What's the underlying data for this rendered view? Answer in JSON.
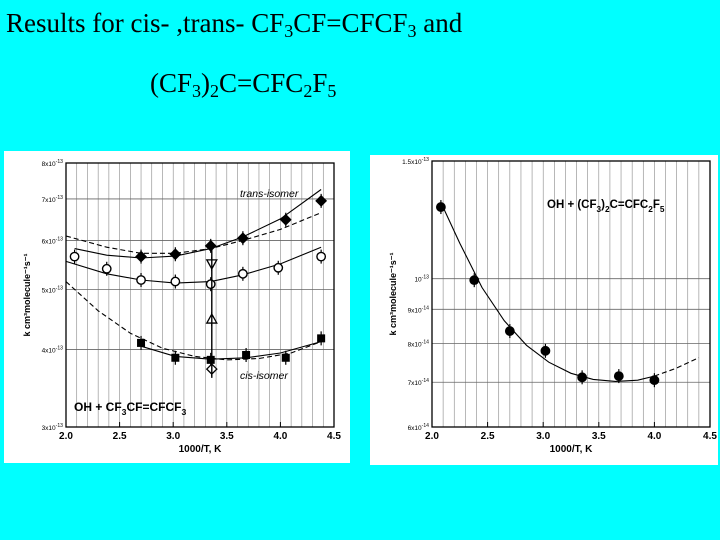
{
  "slide": {
    "title_line1": {
      "a": "Results for cis- ,trans- CF",
      "s1": "3",
      "b": "CF=CFCF",
      "s2": "3",
      "c": " and"
    },
    "title_line2": {
      "a": "(CF",
      "s1": "3",
      "b": ")",
      "s2": "2",
      "c": "C=CFC",
      "s3": "2",
      "d": "F",
      "s4": "5"
    }
  },
  "chart_data": [
    {
      "type": "scatter",
      "yscale": "log",
      "xlabel": "1000/T,  K",
      "ylabel": "k cm³molecule⁻¹s⁻¹",
      "xlim": [
        2.0,
        4.5
      ],
      "ylim": [
        3e-13,
        8e-13
      ],
      "xticks": [
        "2.0",
        "2.5",
        "3.0",
        "3.5",
        "4.0",
        "4.5"
      ],
      "yticks": [
        {
          "v": 3e-13,
          "m": "3x10",
          "e": "-13"
        },
        {
          "v": 4e-13,
          "m": "4x10",
          "e": "-13"
        },
        {
          "v": 5e-13,
          "m": "5x10",
          "e": "-13"
        },
        {
          "v": 6e-13,
          "m": "6x10",
          "e": "-13"
        },
        {
          "v": 7e-13,
          "m": "7x10",
          "e": "-13"
        },
        {
          "v": 8e-13,
          "m": "8x10",
          "e": "-13"
        }
      ],
      "annotations": {
        "trans": "trans-isomer",
        "cis": "cis-isomer",
        "reaction": {
          "a": "OH + CF",
          "s1": "3",
          "b": "CF=CFCF",
          "s2": "3"
        }
      },
      "series": [
        {
          "marker": "diamond-filled",
          "x": [
            2.7,
            3.02,
            3.35,
            3.65,
            4.05,
            4.38
          ],
          "y": [
            5.65e-13,
            5.7e-13,
            5.88e-13,
            6.05e-13,
            6.48e-13,
            6.95e-13
          ]
        },
        {
          "marker": "circle-open",
          "x": [
            2.08,
            2.38,
            2.7,
            3.02,
            3.35,
            3.65,
            3.98,
            4.38
          ],
          "y": [
            5.65e-13,
            5.4e-13,
            5.18e-13,
            5.15e-13,
            5.1e-13,
            5.3e-13,
            5.42e-13,
            5.65e-13
          ]
        },
        {
          "marker": "square-filled",
          "x": [
            2.7,
            3.02,
            3.35,
            3.68,
            4.05,
            4.38
          ],
          "y": [
            4.1e-13,
            3.88e-13,
            3.85e-13,
            3.92e-13,
            3.88e-13,
            4.17e-13
          ]
        },
        {
          "marker": "triangle-down-open",
          "x": [
            3.36
          ],
          "y": [
            5.5e-13
          ]
        },
        {
          "marker": "triangle-up-open",
          "x": [
            3.36
          ],
          "y": [
            4.48e-13
          ]
        },
        {
          "marker": "diamond-open",
          "x": [
            3.36
          ],
          "y": [
            3.72e-13
          ]
        }
      ],
      "fits": [
        {
          "x": [
            2.08,
            2.38,
            2.7,
            3.02,
            3.35,
            3.65,
            4.0,
            4.38
          ],
          "y": [
            5.82e-13,
            5.68e-13,
            5.62e-13,
            5.66e-13,
            5.82e-13,
            6.08e-13,
            6.5e-13,
            7.25e-13
          ],
          "style": "solid"
        },
        {
          "x": [
            2.0,
            2.38,
            2.7,
            3.02,
            3.35,
            3.65,
            4.0,
            4.38
          ],
          "y": [
            5.55e-13,
            5.3e-13,
            5.18e-13,
            5.12e-13,
            5.15e-13,
            5.28e-13,
            5.5e-13,
            5.85e-13
          ],
          "style": "solid"
        },
        {
          "x": [
            2.7,
            3.02,
            3.35,
            3.68,
            4.0,
            4.38
          ],
          "y": [
            4.05e-13,
            3.9e-13,
            3.86e-13,
            3.88e-13,
            3.95e-13,
            4.12e-13
          ],
          "style": "solid"
        },
        {
          "x": [
            2.0,
            2.38,
            2.7,
            3.02,
            3.35,
            3.65,
            4.0,
            4.38
          ],
          "y": [
            6.1e-13,
            5.85e-13,
            5.72e-13,
            5.72e-13,
            5.82e-13,
            6e-13,
            6.25e-13,
            6.65e-13
          ],
          "style": "dashed"
        },
        {
          "x": [
            2.0,
            2.3,
            2.6,
            2.9,
            3.2,
            3.5,
            3.8,
            4.1,
            4.38
          ],
          "y": [
            5.15e-13,
            4.62e-13,
            4.25e-13,
            4.02e-13,
            3.9e-13,
            3.85e-13,
            3.87e-13,
            3.95e-13,
            4.12e-13
          ],
          "style": "dashed"
        }
      ]
    },
    {
      "type": "scatter",
      "yscale": "log",
      "xlabel": "1000/T,  K",
      "ylabel": "k cm³molecule⁻¹s⁻¹",
      "xlim": [
        2.0,
        4.5
      ],
      "ylim": [
        6e-14,
        1.5e-13
      ],
      "xticks": [
        "2.0",
        "2.5",
        "3.0",
        "3.5",
        "4.0",
        "4.5"
      ],
      "yticks": [
        {
          "v": 6e-14,
          "m": "6x10",
          "e": "-14"
        },
        {
          "v": 7e-14,
          "m": "7x10",
          "e": "-14"
        },
        {
          "v": 8e-14,
          "m": "8x10",
          "e": "-14"
        },
        {
          "v": 9e-14,
          "m": "9x10",
          "e": "-14"
        },
        {
          "v": 1e-13,
          "m": "10",
          "e": "-13"
        },
        {
          "v": 1.5e-13,
          "m": "1.5x10",
          "e": "-13"
        }
      ],
      "annotations": {
        "reaction": {
          "a": "OH + (CF",
          "s1": "3",
          "b": ")",
          "s2": "2",
          "c": "C=CFC",
          "s3": "2",
          "d": "F",
          "s4": "5"
        }
      },
      "series": [
        {
          "marker": "circle-filled",
          "x": [
            2.08,
            2.38,
            2.7,
            3.02,
            3.35,
            3.68,
            4.0
          ],
          "y": [
            1.28e-13,
            9.95e-14,
            8.35e-14,
            7.8e-14,
            7.12e-14,
            7.15e-14,
            7.05e-14
          ]
        }
      ],
      "fits": [
        {
          "x": [
            2.08,
            2.25,
            2.45,
            2.65,
            2.85,
            3.05,
            3.25,
            3.45,
            3.65,
            3.85,
            4.0
          ],
          "y": [
            1.3e-13,
            1.13e-13,
            9.7e-14,
            8.65e-14,
            7.95e-14,
            7.5e-14,
            7.22e-14,
            7.07e-14,
            7.02e-14,
            7.05e-14,
            7.15e-14
          ],
          "style": "solid"
        },
        {
          "x": [
            4.0,
            4.2,
            4.4
          ],
          "y": [
            7.15e-14,
            7.35e-14,
            7.62e-14
          ],
          "style": "dashed"
        }
      ]
    }
  ]
}
